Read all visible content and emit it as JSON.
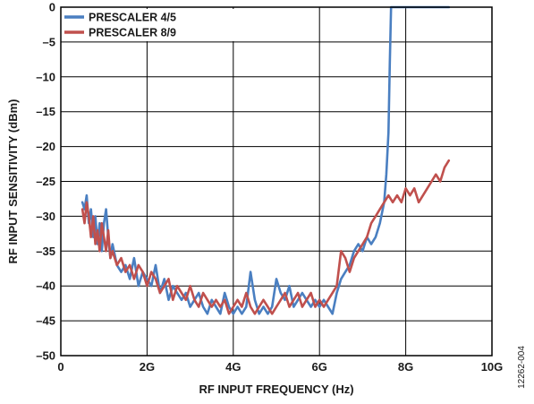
{
  "chart_data": {
    "type": "line",
    "xlabel": "RF INPUT FREQUENCY (Hz)",
    "ylabel": "RF INPUT SENSITIVITY (dBm)",
    "xlim": [
      0,
      10
    ],
    "ylim": [
      -50,
      0
    ],
    "x_ticks": [
      {
        "value": 0,
        "label": "0"
      },
      {
        "value": 2,
        "label": "2G"
      },
      {
        "value": 4,
        "label": "4G"
      },
      {
        "value": 6,
        "label": "6G"
      },
      {
        "value": 8,
        "label": "8G"
      },
      {
        "value": 10,
        "label": "10G"
      }
    ],
    "y_ticks": [
      {
        "value": 0,
        "label": "0"
      },
      {
        "value": -5,
        "label": "–5"
      },
      {
        "value": -10,
        "label": "–10"
      },
      {
        "value": -15,
        "label": "–15"
      },
      {
        "value": -20,
        "label": "–20"
      },
      {
        "value": -25,
        "label": "–25"
      },
      {
        "value": -30,
        "label": "–30"
      },
      {
        "value": -35,
        "label": "–35"
      },
      {
        "value": -40,
        "label": "–40"
      },
      {
        "value": -45,
        "label": "–45"
      },
      {
        "value": -50,
        "label": "–50"
      }
    ],
    "grid": true,
    "legend_position": "top-left",
    "series": [
      {
        "name": "PRESCALER 4/5",
        "color": "#4a7fc1",
        "x": [
          0.5,
          0.55,
          0.6,
          0.65,
          0.7,
          0.75,
          0.8,
          0.85,
          0.9,
          0.95,
          1.0,
          1.05,
          1.1,
          1.15,
          1.2,
          1.3,
          1.4,
          1.5,
          1.6,
          1.7,
          1.8,
          1.9,
          2.0,
          2.1,
          2.2,
          2.3,
          2.4,
          2.5,
          2.6,
          2.7,
          2.8,
          2.9,
          3.0,
          3.1,
          3.2,
          3.3,
          3.4,
          3.5,
          3.6,
          3.7,
          3.8,
          3.9,
          4.0,
          4.1,
          4.2,
          4.3,
          4.4,
          4.5,
          4.6,
          4.7,
          4.8,
          4.9,
          5.0,
          5.1,
          5.2,
          5.3,
          5.4,
          5.5,
          5.6,
          5.7,
          5.8,
          5.9,
          6.0,
          6.1,
          6.2,
          6.3,
          6.4,
          6.5,
          6.6,
          6.7,
          6.8,
          6.9,
          7.0,
          7.1,
          7.2,
          7.3,
          7.4,
          7.5,
          7.55,
          7.6,
          7.63,
          7.66,
          7.7,
          7.8,
          7.9,
          8.0,
          8.2,
          8.4,
          8.6,
          8.8,
          9.0
        ],
        "values": [
          -28,
          -29,
          -27,
          -31,
          -29,
          -33,
          -30,
          -34,
          -31,
          -35,
          -31,
          -29,
          -33,
          -36,
          -34,
          -37,
          -38,
          -37,
          -39,
          -36,
          -40,
          -38,
          -39,
          -40,
          -37,
          -41,
          -39,
          -42,
          -40,
          -41,
          -42,
          -41,
          -43,
          -42,
          -41,
          -43,
          -44,
          -42,
          -43,
          -44,
          -41,
          -43,
          -44,
          -43,
          -44,
          -43,
          -38,
          -42,
          -44,
          -43,
          -44,
          -43,
          -39,
          -41,
          -42,
          -40,
          -43,
          -42,
          -41,
          -42,
          -43,
          -42,
          -43,
          -42,
          -43,
          -44,
          -41,
          -39,
          -38,
          -37,
          -35,
          -34,
          -35,
          -33,
          -34,
          -33,
          -31,
          -28,
          -24,
          -18,
          -8,
          0,
          0,
          0,
          0,
          0,
          0,
          0,
          0,
          0,
          0
        ]
      },
      {
        "name": "PRESCALER 8/9",
        "color": "#c0504d",
        "x": [
          0.5,
          0.55,
          0.6,
          0.65,
          0.7,
          0.75,
          0.8,
          0.85,
          0.9,
          0.95,
          1.0,
          1.05,
          1.1,
          1.15,
          1.2,
          1.3,
          1.4,
          1.5,
          1.6,
          1.7,
          1.8,
          1.9,
          2.0,
          2.1,
          2.2,
          2.3,
          2.4,
          2.5,
          2.6,
          2.7,
          2.8,
          2.9,
          3.0,
          3.1,
          3.2,
          3.3,
          3.4,
          3.5,
          3.6,
          3.7,
          3.8,
          3.9,
          4.0,
          4.1,
          4.2,
          4.3,
          4.4,
          4.5,
          4.6,
          4.7,
          4.8,
          4.9,
          5.0,
          5.1,
          5.2,
          5.3,
          5.4,
          5.5,
          5.6,
          5.7,
          5.8,
          5.9,
          6.0,
          6.1,
          6.2,
          6.3,
          6.4,
          6.5,
          6.6,
          6.7,
          6.8,
          6.9,
          7.0,
          7.1,
          7.2,
          7.3,
          7.4,
          7.5,
          7.6,
          7.7,
          7.8,
          7.9,
          8.0,
          8.1,
          8.2,
          8.3,
          8.4,
          8.5,
          8.6,
          8.7,
          8.8,
          8.9,
          9.0
        ],
        "values": [
          -29,
          -31,
          -28,
          -30,
          -33,
          -30,
          -34,
          -32,
          -35,
          -31,
          -33,
          -35,
          -32,
          -36,
          -35,
          -37,
          -36,
          -38,
          -37,
          -39,
          -37,
          -38,
          -40,
          -38,
          -39,
          -41,
          -40,
          -39,
          -42,
          -40,
          -41,
          -42,
          -40,
          -42,
          -43,
          -41,
          -42,
          -43,
          -42,
          -43,
          -42,
          -44,
          -43,
          -42,
          -43,
          -41,
          -43,
          -44,
          -43,
          -42,
          -43,
          -44,
          -43,
          -42,
          -41,
          -43,
          -42,
          -41,
          -43,
          -42,
          -41,
          -43,
          -42,
          -43,
          -42,
          -41,
          -40,
          -35,
          -36,
          -38,
          -36,
          -35,
          -34,
          -33,
          -31,
          -30,
          -29,
          -28,
          -27,
          -28,
          -27,
          -28,
          -26,
          -27,
          -26,
          -28,
          -27,
          -26,
          -25,
          -24,
          -25,
          -23,
          -22
        ]
      }
    ]
  },
  "figure_id": "12262-004"
}
